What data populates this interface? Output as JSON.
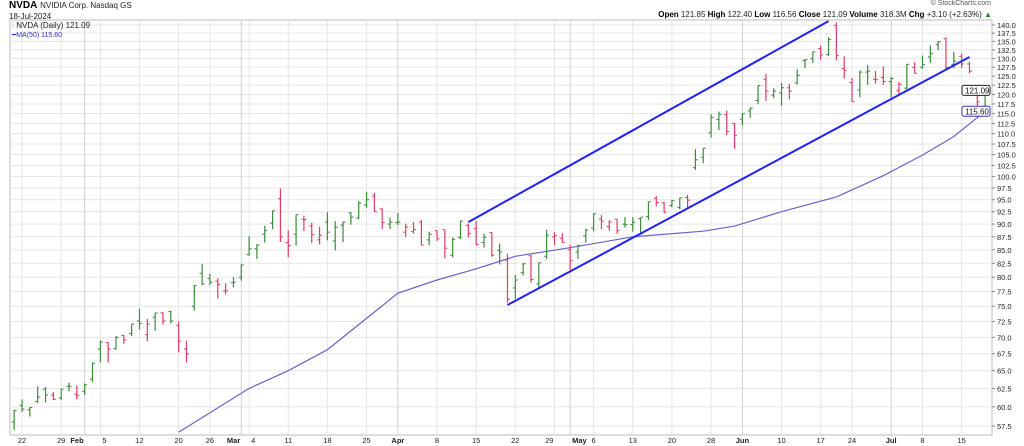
{
  "header": {
    "symbol": "NVDA",
    "company": "NVIDIA Corp. Nasdaq GS",
    "date": "18-Jul-2024",
    "copyright": "© StockCharts.com",
    "legend_price": "NVDA (Daily) 121.09",
    "legend_ma": "MA(50) 115.60",
    "stats": {
      "open_label": "Open",
      "open": "121.85",
      "high_label": "High",
      "high": "122.40",
      "low_label": "Low",
      "low": "116.56",
      "close_label": "Close",
      "close": "121.09",
      "volume_label": "Volume",
      "volume": "318.3M",
      "chg_label": "Chg",
      "chg": "+3.10 (+2.63%)"
    }
  },
  "colors": {
    "up": "#3b8b3b",
    "down": "#e23a63",
    "ma": "#6a62c8",
    "trendline": "#2020ff",
    "grid": "#e6e6e6"
  },
  "chart_data": {
    "type": "ohlc",
    "scale": "log",
    "ylim": [
      57.5,
      140
    ],
    "yticks": [
      57.5,
      60,
      62.5,
      65,
      67.5,
      70,
      72.5,
      75,
      77.5,
      80,
      82.5,
      85,
      87.5,
      90,
      92.5,
      95,
      97.5,
      100,
      102.5,
      105,
      107.5,
      110,
      112.5,
      115,
      117.5,
      120,
      122.5,
      125,
      127.5,
      130,
      132.5,
      135,
      137.5,
      140
    ],
    "grid": true,
    "last_price_badge": "121.09",
    "ma_badge": "115.60",
    "xticks": [
      [
        "22",
        "2024-01-22",
        false
      ],
      [
        "29",
        "2024-01-29",
        false
      ],
      [
        "Feb",
        "2024-02-01",
        true
      ],
      [
        "5",
        "2024-02-05",
        false
      ],
      [
        "12",
        "2024-02-12",
        false
      ],
      [
        "20",
        "2024-02-20",
        false
      ],
      [
        "26",
        "2024-02-26",
        false
      ],
      [
        "Mar",
        "2024-03-01",
        true
      ],
      [
        "4",
        "2024-03-04",
        false
      ],
      [
        "11",
        "2024-03-11",
        false
      ],
      [
        "18",
        "2024-03-18",
        false
      ],
      [
        "25",
        "2024-03-25",
        false
      ],
      [
        "Apr",
        "2024-04-01",
        true
      ],
      [
        "8",
        "2024-04-08",
        false
      ],
      [
        "15",
        "2024-04-15",
        false
      ],
      [
        "22",
        "2024-04-22",
        false
      ],
      [
        "29",
        "2024-04-29",
        false
      ],
      [
        "May",
        "2024-05-01",
        true
      ],
      [
        "6",
        "2024-05-06",
        false
      ],
      [
        "13",
        "2024-05-13",
        false
      ],
      [
        "20",
        "2024-05-20",
        false
      ],
      [
        "28",
        "2024-05-28",
        false
      ],
      [
        "Jun",
        "2024-06-03",
        true
      ],
      [
        "10",
        "2024-06-10",
        false
      ],
      [
        "17",
        "2024-06-17",
        false
      ],
      [
        "24",
        "2024-06-24",
        false
      ],
      [
        "Jul",
        "2024-07-01",
        true
      ],
      [
        "8",
        "2024-07-08",
        false
      ],
      [
        "15",
        "2024-07-15",
        false
      ]
    ],
    "columns": [
      "date",
      "open",
      "high",
      "low",
      "close"
    ],
    "bars": [
      [
        "2024-01-19",
        58.0,
        59.6,
        57.0,
        59.5
      ],
      [
        "2024-01-22",
        60.2,
        61.0,
        59.3,
        59.7
      ],
      [
        "2024-01-23",
        59.6,
        60.0,
        58.7,
        59.9
      ],
      [
        "2024-01-24",
        60.7,
        62.8,
        60.5,
        61.3
      ],
      [
        "2024-01-25",
        62.4,
        62.7,
        60.6,
        61.6
      ],
      [
        "2024-01-26",
        61.6,
        62.0,
        60.9,
        61.0
      ],
      [
        "2024-01-29",
        61.2,
        62.5,
        60.9,
        62.4
      ],
      [
        "2024-01-30",
        62.8,
        63.3,
        62.1,
        62.8
      ],
      [
        "2024-01-31",
        61.7,
        62.9,
        61.0,
        61.5
      ],
      [
        "2024-02-01",
        62.1,
        63.2,
        61.6,
        63.0
      ],
      [
        "2024-02-02",
        63.8,
        66.2,
        63.4,
        66.1
      ],
      [
        "2024-02-05",
        68.2,
        69.5,
        66.2,
        69.3
      ],
      [
        "2024-02-06",
        69.2,
        69.3,
        66.2,
        68.2
      ],
      [
        "2024-02-07",
        68.3,
        70.2,
        68.1,
        70.0
      ],
      [
        "2024-02-08",
        70.3,
        70.4,
        69.0,
        69.6
      ],
      [
        "2024-02-09",
        70.6,
        72.1,
        70.2,
        72.1
      ],
      [
        "2024-02-12",
        72.6,
        74.6,
        71.2,
        72.2
      ],
      [
        "2024-02-13",
        70.4,
        72.9,
        69.4,
        72.1
      ],
      [
        "2024-02-14",
        73.2,
        73.9,
        71.0,
        73.9
      ],
      [
        "2024-02-15",
        73.9,
        74.0,
        72.0,
        72.6
      ],
      [
        "2024-02-16",
        74.1,
        74.3,
        72.2,
        72.6
      ],
      [
        "2024-02-20",
        71.9,
        72.5,
        67.7,
        69.4
      ],
      [
        "2024-02-21",
        68.2,
        69.5,
        66.2,
        67.5
      ],
      [
        "2024-02-22",
        75.0,
        78.6,
        74.3,
        78.5
      ],
      [
        "2024-02-23",
        80.7,
        82.4,
        78.6,
        78.8
      ],
      [
        "2024-02-26",
        79.8,
        80.6,
        78.6,
        79.1
      ],
      [
        "2024-02-27",
        79.3,
        79.8,
        76.3,
        78.7
      ],
      [
        "2024-02-28",
        77.6,
        78.9,
        77.0,
        77.6
      ],
      [
        "2024-02-29",
        79.0,
        80.0,
        78.2,
        79.1
      ],
      [
        "2024-03-01",
        80.0,
        82.3,
        79.4,
        82.2
      ],
      [
        "2024-03-04",
        84.1,
        87.6,
        83.9,
        85.2
      ],
      [
        "2024-03-05",
        85.2,
        86.1,
        83.3,
        85.9
      ],
      [
        "2024-03-06",
        88.0,
        89.7,
        86.4,
        88.7
      ],
      [
        "2024-03-07",
        90.2,
        92.7,
        89.0,
        92.7
      ],
      [
        "2024-03-08",
        95.2,
        97.4,
        86.5,
        87.5
      ],
      [
        "2024-03-11",
        86.4,
        88.8,
        83.6,
        85.8
      ],
      [
        "2024-03-12",
        88.0,
        91.9,
        85.8,
        91.9
      ],
      [
        "2024-03-13",
        91.0,
        91.7,
        88.6,
        90.9
      ],
      [
        "2024-03-14",
        89.6,
        90.3,
        86.3,
        87.9
      ],
      [
        "2024-03-15",
        86.9,
        89.5,
        86.0,
        87.8
      ],
      [
        "2024-03-18",
        90.4,
        92.4,
        86.8,
        88.4
      ],
      [
        "2024-03-19",
        86.7,
        90.6,
        84.9,
        89.4
      ],
      [
        "2024-03-20",
        89.8,
        90.5,
        86.5,
        90.4
      ],
      [
        "2024-03-21",
        92.3,
        92.4,
        89.9,
        91.4
      ],
      [
        "2024-03-22",
        91.2,
        94.7,
        91.0,
        94.3
      ],
      [
        "2024-03-25",
        93.9,
        96.7,
        93.3,
        95.0
      ],
      [
        "2024-03-26",
        95.8,
        96.4,
        92.5,
        92.5
      ],
      [
        "2024-03-27",
        93.1,
        93.2,
        89.0,
        90.3
      ],
      [
        "2024-03-28",
        90.0,
        91.3,
        89.0,
        90.4
      ],
      [
        "2024-04-01",
        90.3,
        92.2,
        89.8,
        90.4
      ],
      [
        "2024-04-02",
        88.4,
        90.1,
        87.5,
        89.4
      ],
      [
        "2024-04-03",
        88.5,
        90.4,
        88.1,
        88.9
      ],
      [
        "2024-04-04",
        90.4,
        90.8,
        85.9,
        85.9
      ],
      [
        "2024-04-05",
        86.9,
        88.5,
        85.9,
        88.0
      ],
      [
        "2024-04-08",
        88.7,
        88.7,
        86.7,
        87.1
      ],
      [
        "2024-04-09",
        88.9,
        88.9,
        83.4,
        85.3
      ],
      [
        "2024-04-10",
        84.0,
        87.4,
        83.6,
        87.0
      ],
      [
        "2024-04-11",
        87.4,
        90.7,
        87.1,
        90.6
      ],
      [
        "2024-04-12",
        89.7,
        90.1,
        87.4,
        88.1
      ],
      [
        "2024-04-15",
        89.1,
        90.6,
        85.9,
        86.0
      ],
      [
        "2024-04-16",
        86.4,
        88.1,
        85.4,
        87.4
      ],
      [
        "2024-04-17",
        88.3,
        88.4,
        83.7,
        84.0
      ],
      [
        "2024-04-18",
        84.9,
        86.2,
        82.3,
        84.6
      ],
      [
        "2024-04-19",
        83.1,
        84.3,
        75.6,
        76.2
      ],
      [
        "2024-04-22",
        78.1,
        80.4,
        76.2,
        79.5
      ],
      [
        "2024-04-23",
        80.8,
        82.6,
        80.3,
        82.4
      ],
      [
        "2024-04-24",
        83.9,
        84.0,
        79.0,
        79.6
      ],
      [
        "2024-04-25",
        78.8,
        82.6,
        78.2,
        82.6
      ],
      [
        "2024-04-26",
        83.8,
        88.9,
        83.3,
        87.8
      ],
      [
        "2024-04-29",
        87.5,
        88.4,
        85.9,
        87.7
      ],
      [
        "2024-04-30",
        87.2,
        88.2,
        86.4,
        86.4
      ],
      [
        "2024-05-01",
        85.0,
        86.0,
        81.2,
        83.0
      ],
      [
        "2024-05-02",
        84.6,
        86.0,
        83.3,
        85.8
      ],
      [
        "2024-05-03",
        87.7,
        89.1,
        86.4,
        88.8
      ],
      [
        "2024-05-06",
        89.2,
        92.2,
        88.6,
        92.1
      ],
      [
        "2024-05-07",
        91.0,
        91.8,
        89.0,
        90.6
      ],
      [
        "2024-05-08",
        89.5,
        90.8,
        88.7,
        90.4
      ],
      [
        "2024-05-09",
        91.0,
        91.0,
        88.1,
        88.7
      ],
      [
        "2024-05-10",
        90.0,
        91.4,
        89.3,
        89.9
      ],
      [
        "2024-05-13",
        89.9,
        91.4,
        88.5,
        90.4
      ],
      [
        "2024-05-14",
        91.1,
        91.3,
        88.2,
        91.4
      ],
      [
        "2024-05-15",
        91.5,
        94.6,
        90.8,
        94.6
      ],
      [
        "2024-05-16",
        95.3,
        95.8,
        93.6,
        94.4
      ],
      [
        "2024-05-17",
        94.3,
        94.6,
        92.3,
        92.4
      ],
      [
        "2024-05-20",
        93.8,
        95.0,
        93.4,
        94.8
      ],
      [
        "2024-05-21",
        93.4,
        95.4,
        93.0,
        95.4
      ],
      [
        "2024-05-22",
        95.5,
        96.0,
        93.2,
        94.9
      ],
      [
        "2024-05-23",
        102.0,
        106.3,
        101.5,
        103.8
      ],
      [
        "2024-05-24",
        104.4,
        106.5,
        103.0,
        106.5
      ],
      [
        "2024-05-28",
        110.2,
        114.9,
        109.0,
        114.0
      ],
      [
        "2024-05-29",
        113.5,
        115.5,
        110.9,
        114.8
      ],
      [
        "2024-05-30",
        114.7,
        115.8,
        109.7,
        110.5
      ],
      [
        "2024-05-31",
        112.5,
        112.7,
        106.4,
        109.6
      ],
      [
        "2024-06-03",
        113.6,
        115.0,
        112.0,
        115.0
      ],
      [
        "2024-06-04",
        115.7,
        116.6,
        114.0,
        116.4
      ],
      [
        "2024-06-05",
        118.4,
        122.4,
        117.5,
        122.4
      ],
      [
        "2024-06-06",
        124.1,
        125.6,
        118.3,
        120.9
      ],
      [
        "2024-06-07",
        119.8,
        121.7,
        119.0,
        120.9
      ],
      [
        "2024-06-10",
        120.4,
        123.1,
        117.0,
        121.8
      ],
      [
        "2024-06-11",
        121.8,
        122.9,
        118.7,
        120.9
      ],
      [
        "2024-06-12",
        123.1,
        126.9,
        122.7,
        125.2
      ],
      [
        "2024-06-13",
        129.4,
        129.8,
        127.2,
        129.6
      ],
      [
        "2024-06-14",
        129.9,
        132.0,
        128.7,
        131.9
      ],
      [
        "2024-06-17",
        132.9,
        133.7,
        129.6,
        131.0
      ],
      [
        "2024-06-18",
        131.1,
        136.3,
        130.7,
        135.6
      ],
      [
        "2024-06-20",
        139.8,
        140.8,
        129.5,
        130.8
      ],
      [
        "2024-06-21",
        127.1,
        130.6,
        124.3,
        126.6
      ],
      [
        "2024-06-24",
        123.2,
        124.5,
        118.0,
        118.1
      ],
      [
        "2024-06-25",
        121.2,
        126.5,
        119.3,
        126.1
      ],
      [
        "2024-06-26",
        126.1,
        128.1,
        122.6,
        126.4
      ],
      [
        "2024-06-27",
        124.1,
        126.4,
        122.9,
        124.0
      ],
      [
        "2024-06-28",
        124.6,
        127.7,
        122.6,
        123.5
      ],
      [
        "2024-07-01",
        123.5,
        124.8,
        118.8,
        124.3
      ],
      [
        "2024-07-02",
        121.1,
        123.4,
        119.9,
        122.7
      ],
      [
        "2024-07-03",
        121.7,
        128.3,
        121.4,
        128.3
      ],
      [
        "2024-07-05",
        127.4,
        128.9,
        125.7,
        125.8
      ],
      [
        "2024-07-08",
        127.5,
        130.8,
        127.0,
        128.2
      ],
      [
        "2024-07-09",
        130.4,
        133.8,
        128.7,
        131.4
      ],
      [
        "2024-07-10",
        134.0,
        135.1,
        132.4,
        134.9
      ],
      [
        "2024-07-11",
        135.8,
        136.2,
        127.0,
        127.4
      ],
      [
        "2024-07-12",
        128.3,
        131.9,
        127.2,
        129.2
      ],
      [
        "2024-07-15",
        130.6,
        131.4,
        127.2,
        128.4
      ],
      [
        "2024-07-16",
        128.4,
        129.0,
        125.8,
        126.4
      ],
      [
        "2024-07-17",
        121.4,
        121.9,
        116.7,
        118.0
      ],
      [
        "2024-07-18",
        121.85,
        122.4,
        116.56,
        121.09
      ]
    ],
    "ma50": [
      [
        "2024-02-20",
        56.7
      ],
      [
        "2024-03-04",
        62.5
      ],
      [
        "2024-03-11",
        65.0
      ],
      [
        "2024-03-18",
        68.1
      ],
      [
        "2024-04-01",
        77.2
      ],
      [
        "2024-04-08",
        79.5
      ],
      [
        "2024-04-15",
        81.5
      ],
      [
        "2024-04-22",
        83.8
      ],
      [
        "2024-05-01",
        85.4
      ],
      [
        "2024-05-13",
        87.5
      ],
      [
        "2024-05-24",
        88.6
      ],
      [
        "2024-05-31",
        89.6
      ],
      [
        "2024-06-10",
        92.5
      ],
      [
        "2024-06-20",
        95.6
      ],
      [
        "2024-06-28",
        100.2
      ],
      [
        "2024-07-08",
        104.9
      ],
      [
        "2024-07-12",
        109.3
      ],
      [
        "2024-07-18",
        115.6
      ]
    ],
    "trendlines": [
      {
        "from": [
          "2024-04-12",
          90.4
        ],
        "to": [
          "2024-06-18",
          141.2
        ]
      },
      {
        "from": [
          "2024-04-19",
          75.2
        ],
        "to": [
          "2024-07-16",
          130.4
        ]
      }
    ]
  }
}
